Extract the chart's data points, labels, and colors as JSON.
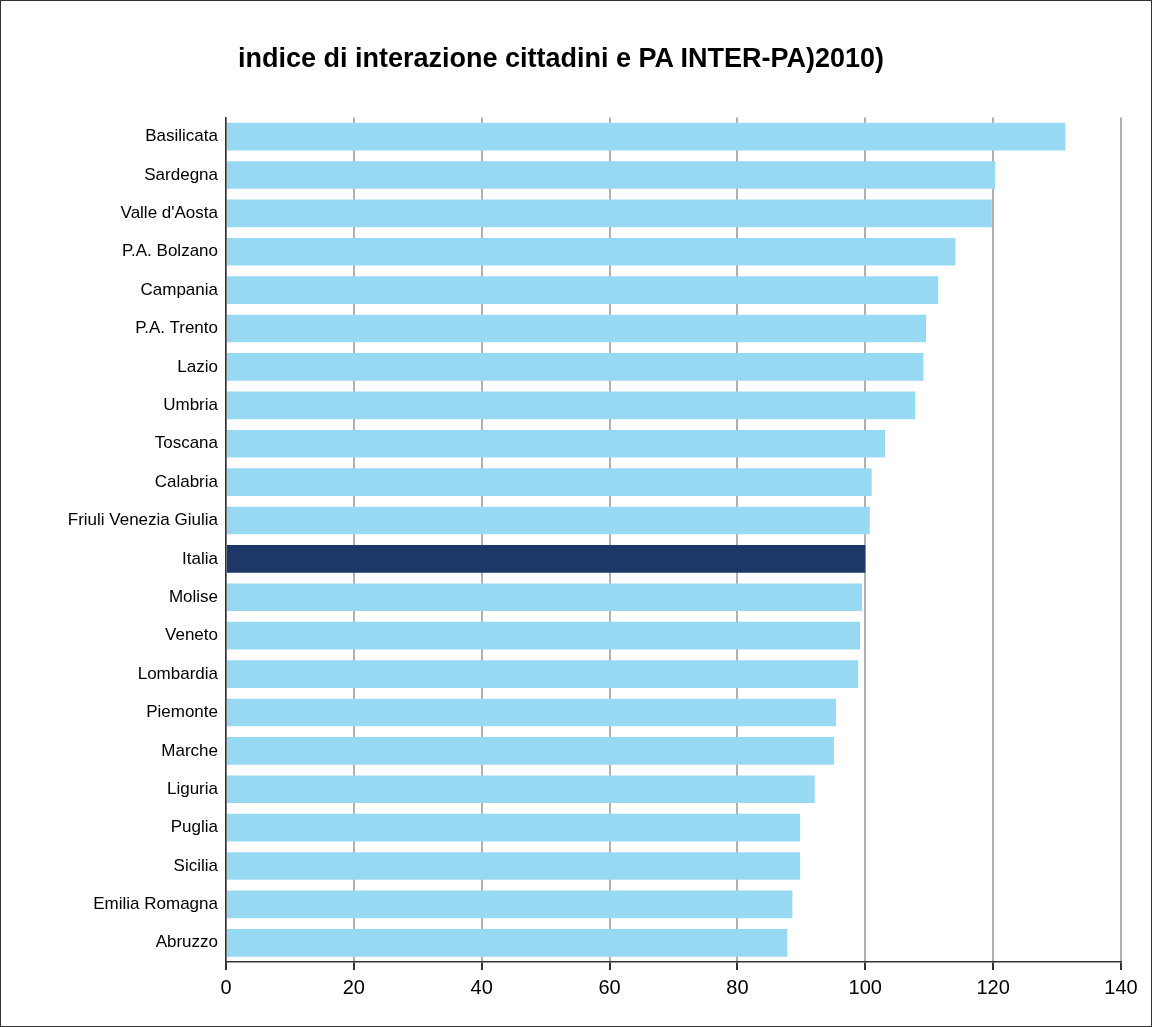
{
  "chart_data": {
    "type": "bar",
    "orientation": "horizontal",
    "title": "indice di interazione cittadini e PA INTER-PA)2010)",
    "categories": [
      "Basilicata",
      "Sardegna",
      "Valle d'Aosta",
      "P.A. Bolzano",
      "Campania",
      "P.A. Trento",
      "Lazio",
      "Umbria",
      "Toscana",
      "Calabria",
      "Friuli Venezia Giulia",
      "Italia",
      "Molise",
      "Veneto",
      "Lombardia",
      "Piemonte",
      "Marche",
      "Liguria",
      "Puglia",
      "Sicilia",
      "Emilia Romagna",
      "Abruzzo"
    ],
    "values": [
      131.3,
      120.3,
      119.8,
      114.1,
      111.4,
      109.5,
      109.1,
      107.8,
      103.1,
      101.0,
      100.7,
      100,
      99.5,
      99.2,
      98.9,
      95.4,
      95.1,
      92.1,
      89.8,
      89.8,
      88.6,
      87.8
    ],
    "colors": [
      "#97d9f2",
      "#97d9f2",
      "#97d9f2",
      "#97d9f2",
      "#97d9f2",
      "#97d9f2",
      "#97d9f2",
      "#97d9f2",
      "#97d9f2",
      "#97d9f2",
      "#97d9f2",
      "#1c3768",
      "#97d9f2",
      "#97d9f2",
      "#97d9f2",
      "#97d9f2",
      "#97d9f2",
      "#97d9f2",
      "#97d9f2",
      "#97d9f2",
      "#97d9f2",
      "#97d9f2"
    ],
    "xlim": [
      0,
      140
    ],
    "xticks": [
      0,
      20,
      40,
      60,
      80,
      100,
      120,
      140
    ],
    "grid": "x",
    "legend": false
  }
}
